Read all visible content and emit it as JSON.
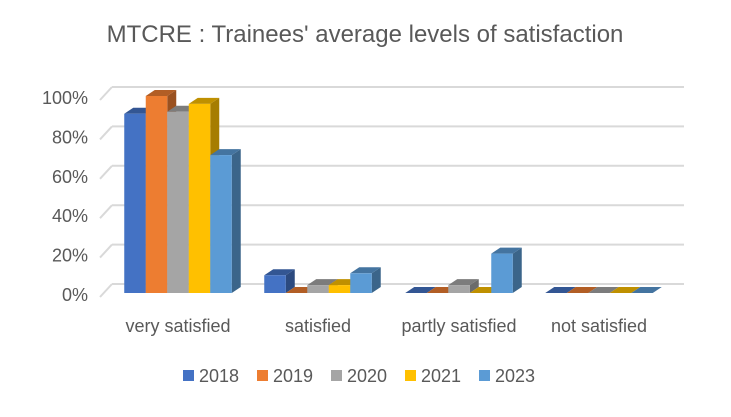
{
  "chart_data": {
    "type": "bar",
    "title": "MTCRE : Trainees' average levels of satisfaction",
    "categories": [
      "very satisfied",
      "satisfied",
      "partly satisfied",
      "not satisfied"
    ],
    "series": [
      {
        "name": "2018",
        "color": "#4472C4",
        "values": [
          91,
          9,
          0,
          0
        ]
      },
      {
        "name": "2019",
        "color": "#ED7D31",
        "values": [
          100,
          0,
          0,
          0
        ]
      },
      {
        "name": "2020",
        "color": "#A5A5A5",
        "values": [
          92,
          4,
          4,
          0
        ]
      },
      {
        "name": "2021",
        "color": "#FFC000",
        "values": [
          96,
          4,
          0,
          0
        ]
      },
      {
        "name": "2023",
        "color": "#5B9BD5",
        "values": [
          70,
          10,
          20,
          0
        ]
      }
    ],
    "yticks": [
      "0%",
      "20%",
      "40%",
      "60%",
      "80%",
      "100%"
    ],
    "ylim": [
      0,
      100
    ],
    "grid": true,
    "legend": "bottom",
    "style": "3d-clustered-column"
  }
}
